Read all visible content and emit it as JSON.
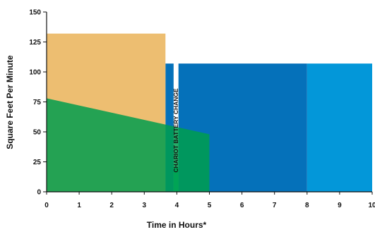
{
  "chart_data": {
    "type": "area",
    "xlabel": "Time in Hours*",
    "ylabel": "Square Feet Per Minute",
    "xlim": [
      0,
      10
    ],
    "ylim": [
      0,
      150
    ],
    "x_ticks": [
      "0",
      "1",
      "2",
      "3",
      "4",
      "5",
      "6",
      "7",
      "8",
      "9",
      "10"
    ],
    "y_ticks": [
      "0",
      "25",
      "50",
      "75",
      "100",
      "125",
      "150"
    ],
    "grid": false,
    "regions": [
      {
        "color": "#0397d9",
        "points": [
          [
            8,
            0
          ],
          [
            10,
            0
          ],
          [
            10,
            107
          ],
          [
            8,
            107
          ]
        ]
      },
      {
        "color": "#0571ba",
        "points": [
          [
            4.05,
            0
          ],
          [
            8,
            0
          ],
          [
            8,
            107
          ],
          [
            4.05,
            107
          ]
        ]
      },
      {
        "color": "#0571ba",
        "points": [
          [
            3.65,
            0
          ],
          [
            3.9,
            0
          ],
          [
            3.9,
            107
          ],
          [
            3.65,
            107
          ]
        ]
      },
      {
        "color": "#eab358",
        "opacity": 0.85,
        "points": [
          [
            0,
            0
          ],
          [
            3.65,
            0
          ],
          [
            3.65,
            132
          ],
          [
            0,
            132
          ]
        ]
      },
      {
        "color": "#009e4e",
        "opacity": 0.85,
        "points": [
          [
            0,
            0
          ],
          [
            5,
            0
          ],
          [
            5,
            48
          ],
          [
            0,
            78
          ]
        ]
      },
      {
        "color": "#00a455",
        "points": [
          [
            3.9,
            0
          ],
          [
            4.05,
            0
          ],
          [
            4.05,
            20
          ],
          [
            3.9,
            20
          ]
        ]
      }
    ],
    "annotations": [
      {
        "text": "CHARIOT BATTERY CHANGE",
        "x": 3.97,
        "y": 2
      }
    ]
  }
}
